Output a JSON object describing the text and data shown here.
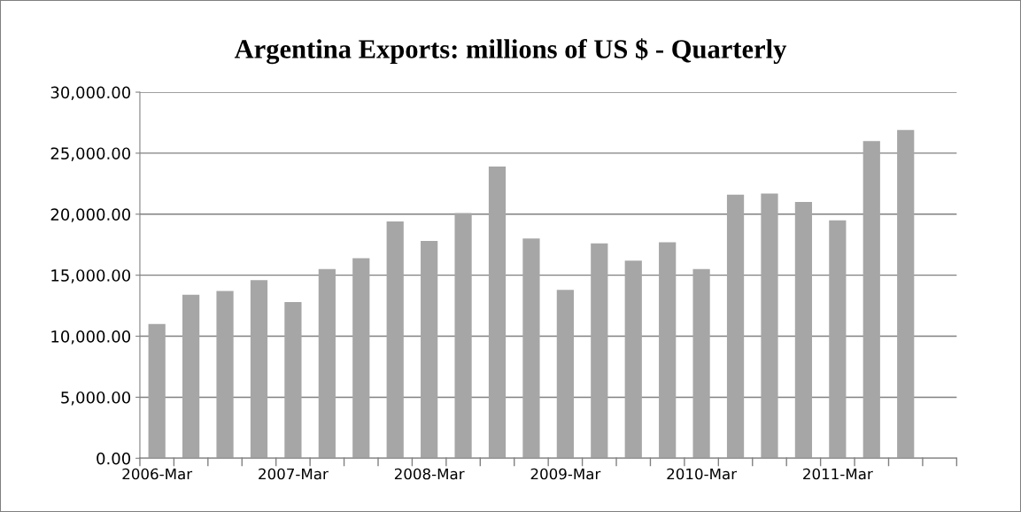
{
  "chart_data": {
    "type": "bar",
    "title": "Argentina Exports: millions of US $ - Quarterly",
    "categories": [
      "2006-Mar",
      null,
      null,
      null,
      "2007-Mar",
      null,
      null,
      null,
      "2008-Mar",
      null,
      null,
      null,
      "2009-Mar",
      null,
      null,
      null,
      "2010-Mar",
      null,
      null,
      null,
      "2011-Mar",
      null,
      null
    ],
    "values": [
      11000,
      13400,
      13700,
      14600,
      12800,
      15500,
      16400,
      19400,
      17800,
      20100,
      23900,
      18000,
      13800,
      17600,
      16200,
      17700,
      15500,
      21600,
      21700,
      21000,
      19500,
      26000,
      26900
    ],
    "color": "#a6a6a6",
    "ylim": [
      0,
      30000
    ],
    "yticks": [
      {
        "value": 0,
        "label": "0.00"
      },
      {
        "value": 5000,
        "label": "5,000.00"
      },
      {
        "value": 10000,
        "label": "10,000.00"
      },
      {
        "value": 15000,
        "label": "15,000.00"
      },
      {
        "value": 20000,
        "label": "20,000.00"
      },
      {
        "value": 25000,
        "label": "25,000.00"
      },
      {
        "value": 30000,
        "label": "30,000.00"
      }
    ],
    "grid": "y"
  }
}
